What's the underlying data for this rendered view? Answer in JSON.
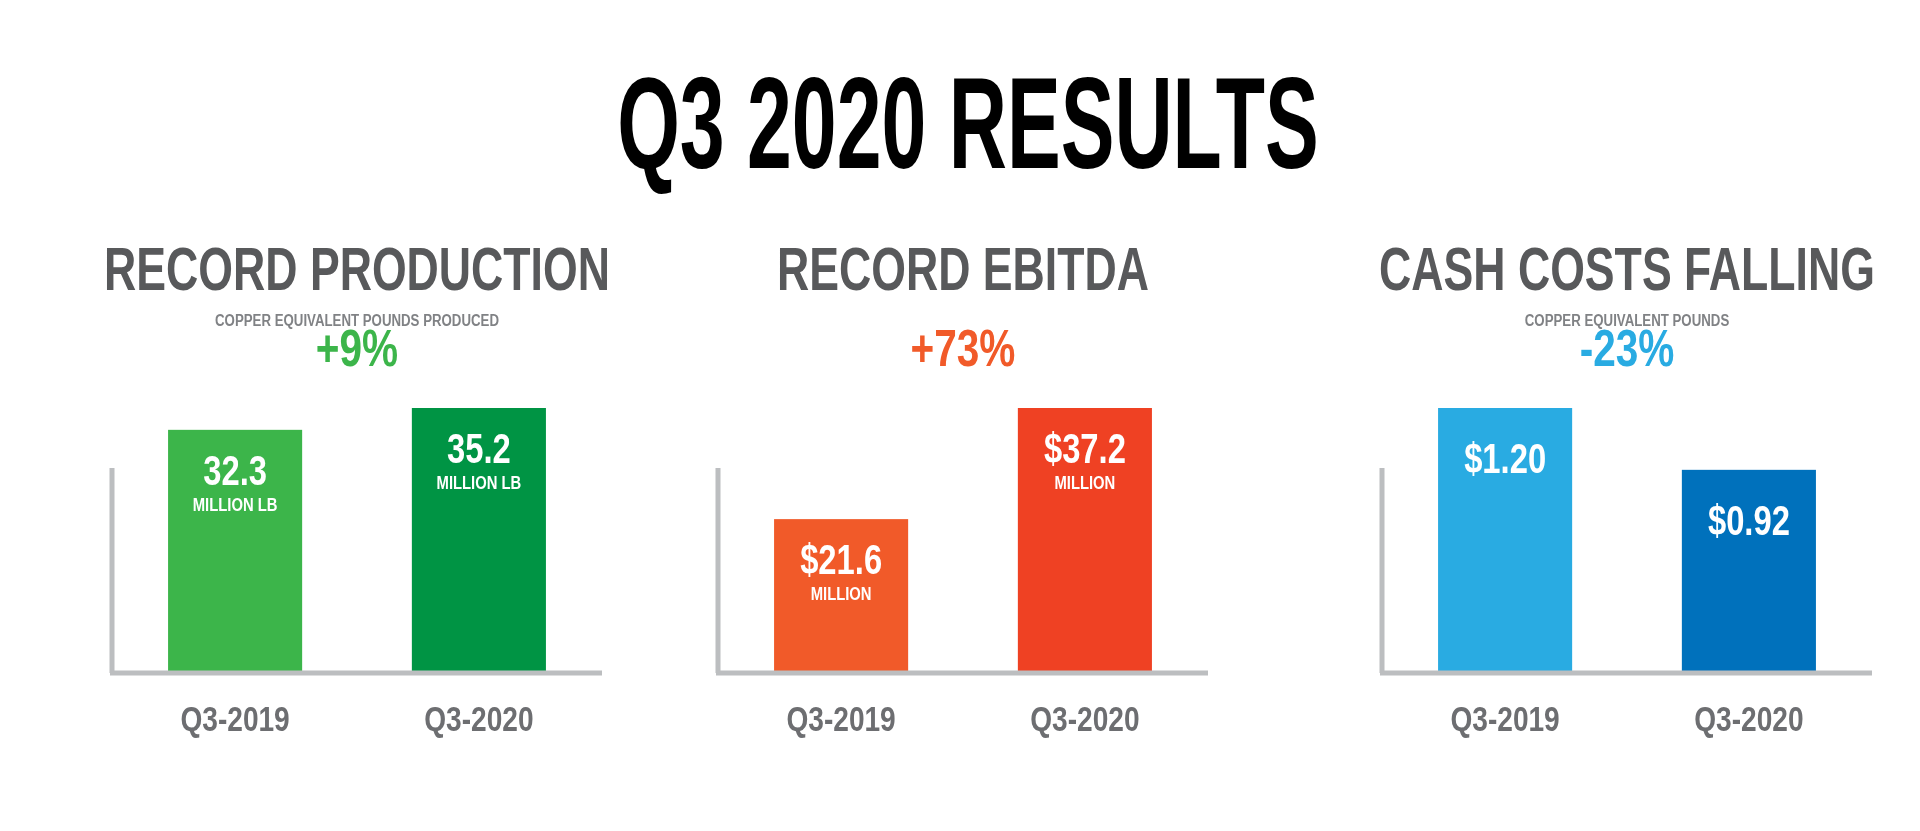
{
  "chart_data": [
    {
      "type": "other",
      "title": "Q3 2020 RESULTS"
    },
    {
      "type": "bar",
      "title": "RECORD PRODUCTION",
      "subtitle": "COPPER EQUIVALENT POUNDS PRODUCED",
      "categories": [
        "Q3-2019",
        "Q3-2020"
      ],
      "values": [
        32.3,
        35.2
      ],
      "colors": [
        "#3cb54a",
        "#009444"
      ],
      "value_labels": [
        "32.3 MILLION LB",
        "35.2 MILLION LB"
      ],
      "tick_labels": "x",
      "annotations": [
        "+9%"
      ]
    },
    {
      "type": "bar",
      "title": "RECORD EBITDA",
      "categories": [
        "Q3-2019",
        "Q3-2020"
      ],
      "values": [
        21.6,
        37.2
      ],
      "colors": [
        "#f15a29",
        "#ef4123"
      ],
      "value_labels": [
        "$21.6 MILLION",
        "$37.2 MILLION"
      ],
      "tick_labels": "x",
      "annotations": [
        "+73%"
      ]
    },
    {
      "type": "bar",
      "title": "CASH COSTS FALLING",
      "subtitle": "COPPER EQUIVALENT POUNDS",
      "categories": [
        "Q3-2019",
        "Q3-2020"
      ],
      "values": [
        1.2,
        0.92
      ],
      "colors": [
        "#29abe2",
        "#0071bc"
      ],
      "value_labels": [
        "$1.20",
        "$0.92"
      ],
      "tick_labels": "x",
      "annotations": [
        "-23%"
      ]
    }
  ]
}
